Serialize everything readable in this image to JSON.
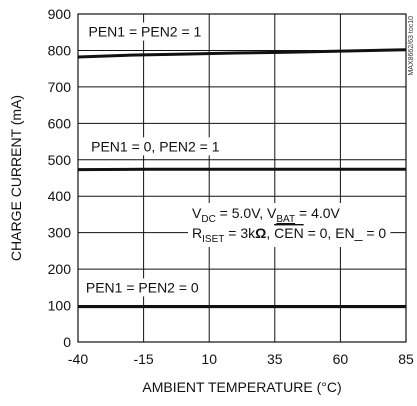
{
  "chart_data": {
    "type": "line",
    "title": "",
    "xlabel": "AMBIENT TEMPERATURE (°C)",
    "ylabel": "CHARGE CURRENT (mA)",
    "xlim": [
      -40,
      85
    ],
    "ylim": [
      0,
      900
    ],
    "xticks": [
      -40,
      -15,
      10,
      35,
      60,
      85
    ],
    "yticks": [
      0,
      100,
      200,
      300,
      400,
      500,
      600,
      700,
      800,
      900
    ],
    "grid": true,
    "series": [
      {
        "name": "PEN1 = PEN2 = 1",
        "x": [
          -40,
          -20,
          0,
          20,
          40,
          60,
          85
        ],
        "y": [
          782,
          787,
          790,
          793,
          795,
          798,
          802
        ]
      },
      {
        "name": "PEN1 = 0, PEN2 = 1",
        "x": [
          -40,
          -15,
          10,
          35,
          60,
          85
        ],
        "y": [
          473,
          474,
          474,
          474,
          474,
          474
        ]
      },
      {
        "name": "PEN1 = PEN2 = 0",
        "x": [
          -40,
          -15,
          10,
          35,
          60,
          85
        ],
        "y": [
          97,
          97,
          97,
          97,
          97,
          97
        ]
      }
    ],
    "annotations": {
      "cond1": {
        "a": "V",
        "a_sub": "DC",
        "b": " = 5.0V, V",
        "b_sub": "BAT",
        "c": " = 4.0V"
      },
      "cond2": {
        "a": "R",
        "a_sub": "ISET",
        "b": " = 3k",
        "omega": "Ω",
        "c": ", ",
        "cen": "CEN",
        "d": " = 0, EN_ = 0"
      }
    },
    "watermark": "MAX8662/63 toc10"
  }
}
